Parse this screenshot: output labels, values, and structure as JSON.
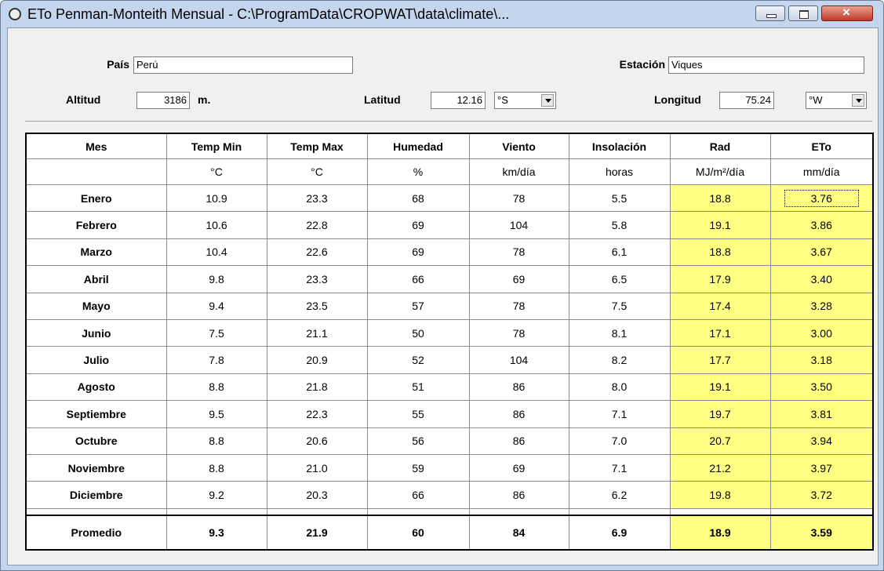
{
  "window": {
    "title": "ETo Penman-Monteith Mensual - C:\\ProgramData\\CROPWAT\\data\\climate\\..."
  },
  "fields": {
    "pais_label": "País",
    "pais": "Perú",
    "estacion_label": "Estación",
    "estacion": "Viques",
    "altitud_label": "Altitud",
    "altitud": "3186",
    "altitud_unit": "m.",
    "latitud_label": "Latitud",
    "latitud": "12.16",
    "latitud_dir": "°S",
    "longitud_label": "Longitud",
    "longitud": "75.24",
    "longitud_dir": "°W"
  },
  "table": {
    "headers": [
      "Mes",
      "Temp Min",
      "Temp Max",
      "Humedad",
      "Viento",
      "Insolación",
      "Rad",
      "ETo"
    ],
    "units": [
      "°C",
      "°C",
      "%",
      "km/día",
      "horas",
      "MJ/m²/día",
      "mm/día"
    ],
    "rows": [
      [
        "Enero",
        "10.9",
        "23.3",
        "68",
        "78",
        "5.5",
        "18.8",
        "3.76"
      ],
      [
        "Febrero",
        "10.6",
        "22.8",
        "69",
        "104",
        "5.8",
        "19.1",
        "3.86"
      ],
      [
        "Marzo",
        "10.4",
        "22.6",
        "69",
        "78",
        "6.1",
        "18.8",
        "3.67"
      ],
      [
        "Abril",
        "9.8",
        "23.3",
        "66",
        "69",
        "6.5",
        "17.9",
        "3.40"
      ],
      [
        "Mayo",
        "9.4",
        "23.5",
        "57",
        "78",
        "7.5",
        "17.4",
        "3.28"
      ],
      [
        "Junio",
        "7.5",
        "21.1",
        "50",
        "78",
        "8.1",
        "17.1",
        "3.00"
      ],
      [
        "Julio",
        "7.8",
        "20.9",
        "52",
        "104",
        "8.2",
        "17.7",
        "3.18"
      ],
      [
        "Agosto",
        "8.8",
        "21.8",
        "51",
        "86",
        "8.0",
        "19.1",
        "3.50"
      ],
      [
        "Septiembre",
        "9.5",
        "22.3",
        "55",
        "86",
        "7.1",
        "19.7",
        "3.81"
      ],
      [
        "Octubre",
        "8.8",
        "20.6",
        "56",
        "86",
        "7.0",
        "20.7",
        "3.94"
      ],
      [
        "Noviembre",
        "8.8",
        "21.0",
        "59",
        "69",
        "7.1",
        "21.2",
        "3.97"
      ],
      [
        "Diciembre",
        "9.2",
        "20.3",
        "66",
        "86",
        "6.2",
        "19.8",
        "3.72"
      ]
    ],
    "average": [
      "Promedio",
      "9.3",
      "21.9",
      "60",
      "84",
      "6.9",
      "18.9",
      "3.59"
    ]
  }
}
